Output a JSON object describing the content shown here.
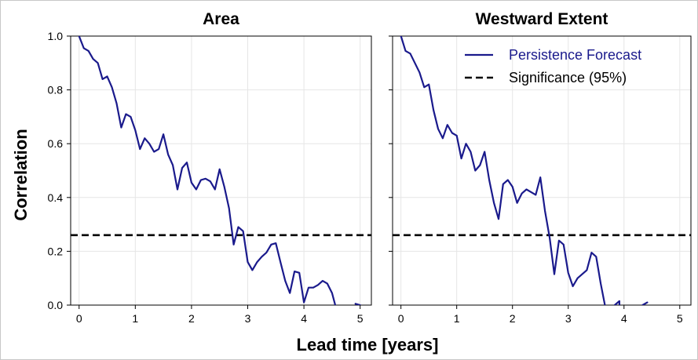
{
  "chart_data": {
    "type": "line",
    "xlabel": "Lead time [years]",
    "ylabel": "Correlation",
    "xlim": [
      -0.15,
      5.2
    ],
    "ylim": [
      0,
      1.0
    ],
    "xticks": [
      "0",
      "1",
      "2",
      "3",
      "4",
      "5"
    ],
    "yticks": [
      "0.0",
      "0.2",
      "0.4",
      "0.6",
      "0.8",
      "1.0"
    ],
    "grid": true,
    "legend": {
      "placement": "top-right",
      "entries": [
        {
          "label": "Persistence Forecast",
          "style": "solid",
          "color": "#1a1a8c"
        },
        {
          "label": "Significance (95%)",
          "style": "dashed",
          "color": "#000000"
        }
      ]
    },
    "significance_level": 0.26,
    "panels": [
      {
        "title": "Area",
        "series": [
          {
            "name": "Persistence Forecast",
            "color": "#1a1a8c",
            "x": [
              0,
              0.083,
              0.167,
              0.25,
              0.333,
              0.417,
              0.5,
              0.583,
              0.667,
              0.75,
              0.833,
              0.917,
              1.0,
              1.083,
              1.167,
              1.25,
              1.333,
              1.417,
              1.5,
              1.583,
              1.667,
              1.75,
              1.833,
              1.917,
              2.0,
              2.083,
              2.167,
              2.25,
              2.333,
              2.417,
              2.5,
              2.583,
              2.667,
              2.75,
              2.833,
              2.917,
              3.0,
              3.083,
              3.167,
              3.25,
              3.333,
              3.417,
              3.5,
              3.583,
              3.667,
              3.75,
              3.833,
              3.917,
              4.0,
              4.083,
              4.167,
              4.25,
              4.333,
              4.417,
              4.5,
              4.583
            ],
            "y": [
              1.0,
              0.955,
              0.945,
              0.915,
              0.9,
              0.84,
              0.85,
              0.81,
              0.75,
              0.66,
              0.71,
              0.7,
              0.65,
              0.58,
              0.62,
              0.6,
              0.57,
              0.58,
              0.635,
              0.56,
              0.52,
              0.43,
              0.51,
              0.53,
              0.455,
              0.43,
              0.465,
              0.47,
              0.46,
              0.43,
              0.505,
              0.44,
              0.36,
              0.225,
              0.29,
              0.275,
              0.16,
              0.13,
              0.16,
              0.18,
              0.195,
              0.225,
              0.23,
              0.16,
              0.09,
              0.045,
              0.125,
              0.12,
              0.01,
              0.065,
              0.065,
              0.075,
              0.09,
              0.08,
              0.045,
              -0.02
            ]
          },
          {
            "name": "Persistence Forecast (tail)",
            "color": "#1a1a8c",
            "x": [
              4.917,
              5.0
            ],
            "y": [
              0.005,
              0.0
            ]
          }
        ]
      },
      {
        "title": "Westward Extent",
        "series": [
          {
            "name": "Persistence Forecast",
            "color": "#1a1a8c",
            "x": [
              0,
              0.083,
              0.167,
              0.25,
              0.333,
              0.417,
              0.5,
              0.583,
              0.667,
              0.75,
              0.833,
              0.917,
              1.0,
              1.083,
              1.167,
              1.25,
              1.333,
              1.417,
              1.5,
              1.583,
              1.667,
              1.75,
              1.833,
              1.917,
              2.0,
              2.083,
              2.167,
              2.25,
              2.333,
              2.417,
              2.5,
              2.583,
              2.667,
              2.75,
              2.833,
              2.917,
              3.0,
              3.083,
              3.167,
              3.25,
              3.333,
              3.417,
              3.5,
              3.583,
              3.667
            ],
            "y": [
              1.0,
              0.945,
              0.935,
              0.9,
              0.865,
              0.81,
              0.82,
              0.725,
              0.655,
              0.62,
              0.67,
              0.64,
              0.63,
              0.545,
              0.6,
              0.57,
              0.5,
              0.52,
              0.57,
              0.465,
              0.38,
              0.32,
              0.45,
              0.465,
              0.44,
              0.38,
              0.415,
              0.43,
              0.42,
              0.41,
              0.475,
              0.35,
              0.25,
              0.115,
              0.24,
              0.225,
              0.12,
              0.07,
              0.1,
              0.115,
              0.13,
              0.195,
              0.18,
              0.08,
              -0.01
            ]
          },
          {
            "name": "Persistence Forecast (tail)",
            "color": "#1a1a8c",
            "x": [
              3.833,
              3.917,
              3.917
            ],
            "y": [
              0.0,
              0.015,
              0.0
            ]
          },
          {
            "name": "Persistence Forecast (tail 2)",
            "color": "#1a1a8c",
            "x": [
              4.333,
              4.417
            ],
            "y": [
              0.0,
              0.01
            ]
          }
        ]
      }
    ]
  }
}
